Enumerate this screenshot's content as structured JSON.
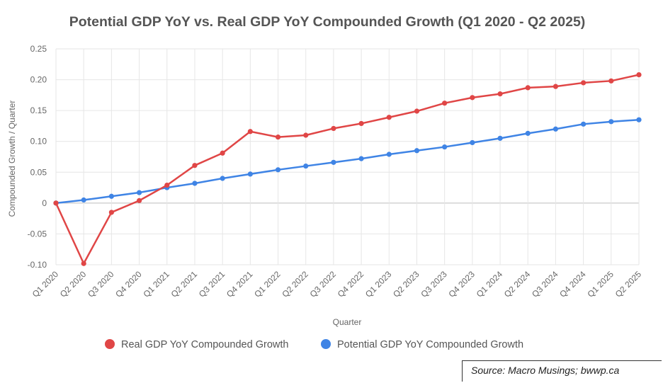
{
  "chart_data": {
    "type": "line",
    "title": "Potential GDP YoY vs. Real GDP YoY Compounded Growth (Q1 2020 - Q2 2025)",
    "xlabel": "Quarter",
    "ylabel": "Compounded Growth / Quarter",
    "ylim": [
      -0.1,
      0.25
    ],
    "yticks": [
      -0.1,
      -0.05,
      0,
      0.05,
      0.1,
      0.15,
      0.2,
      0.25
    ],
    "ytick_labels": [
      "-0.10",
      "-0.05",
      "0",
      "0.05",
      "0.10",
      "0.15",
      "0.20",
      "0.25"
    ],
    "grid": true,
    "legend_position": "bottom",
    "categories": [
      "Q1 2020",
      "Q2 2020",
      "Q3 2020",
      "Q4 2020",
      "Q1 2021",
      "Q2 2021",
      "Q3 2021",
      "Q4 2021",
      "Q1 2022",
      "Q2 2022",
      "Q3 2022",
      "Q4 2022",
      "Q1 2023",
      "Q2 2023",
      "Q3 2023",
      "Q4 2023",
      "Q1 2024",
      "Q2 2024",
      "Q3 2024",
      "Q4 2024",
      "Q1 2025",
      "Q2 2025"
    ],
    "series": [
      {
        "name": "Real GDP YoY Compounded Growth",
        "color": "#e04646",
        "values": [
          0.0,
          -0.098,
          -0.015,
          0.004,
          0.029,
          0.061,
          0.081,
          0.116,
          0.107,
          0.11,
          0.121,
          0.129,
          0.139,
          0.149,
          0.162,
          0.171,
          0.177,
          0.187,
          0.189,
          0.195,
          0.198,
          0.208
        ]
      },
      {
        "name": "Potential GDP YoY Compounded Growth",
        "color": "#3f84e5",
        "values": [
          0.0,
          0.005,
          0.011,
          0.017,
          0.025,
          0.032,
          0.04,
          0.047,
          0.054,
          0.06,
          0.066,
          0.072,
          0.079,
          0.085,
          0.091,
          0.098,
          0.105,
          0.113,
          0.12,
          0.128,
          0.132,
          0.135
        ]
      }
    ]
  },
  "source": "Source: Macro Musings; bwwp.ca"
}
